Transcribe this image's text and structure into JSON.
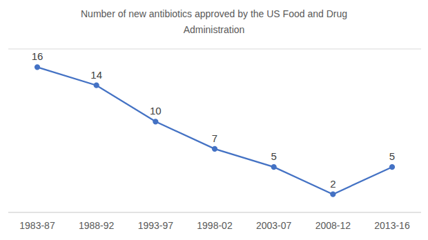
{
  "chart_data": {
    "type": "line",
    "title": "Number of new antibiotics approved by the US Food and Drug Administration",
    "categories": [
      "1983-87",
      "1988-92",
      "1993-97",
      "1998-02",
      "2003-07",
      "2008-12",
      "2013-16"
    ],
    "values": [
      16,
      14,
      10,
      7,
      5,
      2,
      5
    ],
    "color": "#4472c4",
    "ylim": [
      0,
      18
    ],
    "yticks": [
      0,
      2,
      4,
      6,
      8,
      10,
      12,
      14,
      16,
      18
    ],
    "grid": true,
    "data_labels": true,
    "tick_labels": "x",
    "marker": "circle"
  }
}
